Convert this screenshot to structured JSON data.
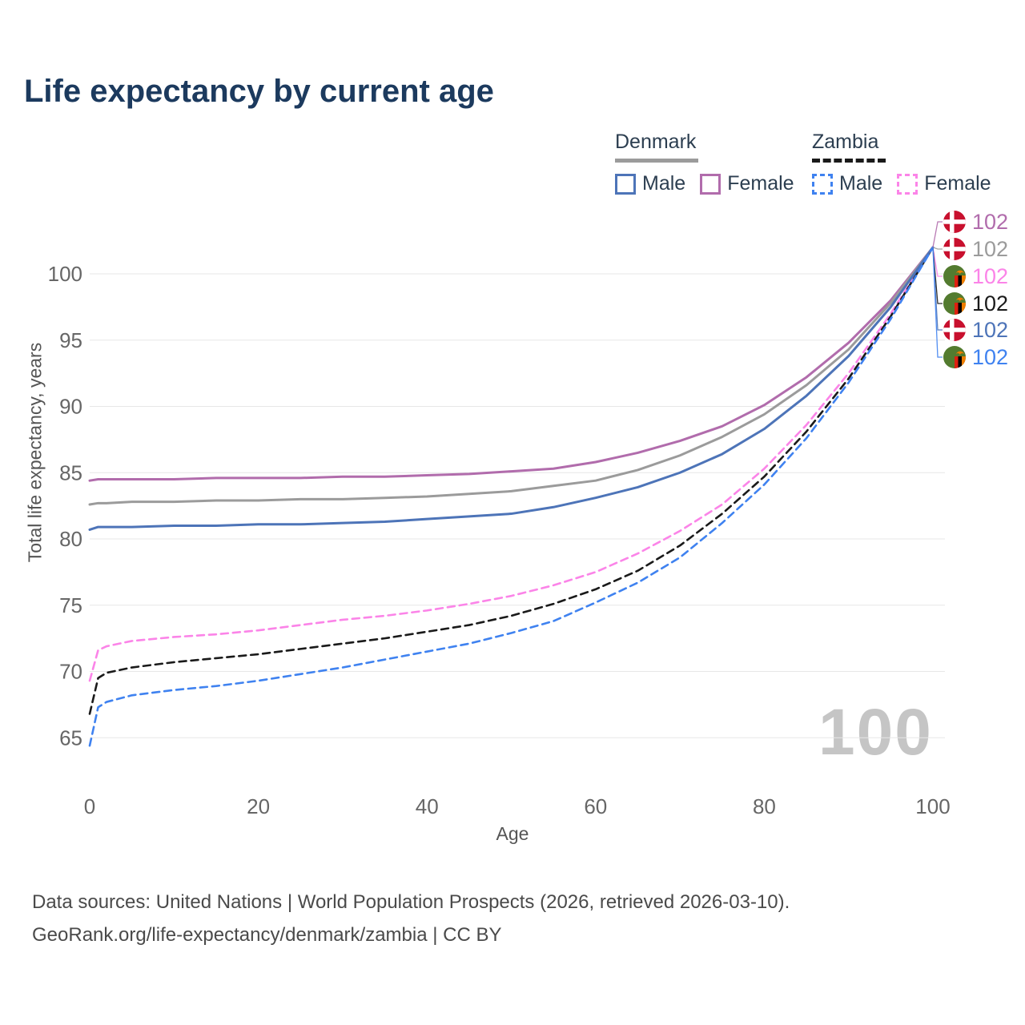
{
  "title": "Life expectancy by current age",
  "legend": {
    "groups": [
      {
        "country": "Denmark",
        "line_style": "solid",
        "rule_color": "#9b9b9b",
        "items": [
          {
            "label": "Male",
            "color": "#4d74b8"
          },
          {
            "label": "Female",
            "color": "#b16cac"
          }
        ]
      },
      {
        "country": "Zambia",
        "line_style": "dashed",
        "rule_color": "#1a1a1a",
        "items": [
          {
            "label": "Male",
            "color": "#3f82f0"
          },
          {
            "label": "Female",
            "color": "#fb84e8"
          }
        ]
      }
    ]
  },
  "chart_data": {
    "type": "line",
    "title": "Life expectancy by current age",
    "xlabel": "Age",
    "ylabel": "Total life expectancy, years",
    "xlim": [
      0,
      100
    ],
    "ylim": [
      63,
      103
    ],
    "xticks": [
      0,
      20,
      40,
      60,
      80,
      100
    ],
    "yticks": [
      65,
      70,
      75,
      80,
      85,
      90,
      95,
      100
    ],
    "grid": true,
    "legend_position": "top-right",
    "watermark": "100",
    "x": [
      0,
      1,
      2,
      5,
      10,
      15,
      20,
      25,
      30,
      35,
      40,
      45,
      50,
      55,
      60,
      65,
      70,
      75,
      80,
      85,
      90,
      95,
      100
    ],
    "series": [
      {
        "name": "Denmark Female",
        "country": "Denmark",
        "sex": "Female",
        "color": "#b16cac",
        "dashed": false,
        "flag_icon": "denmark-flag-icon",
        "end_label": "102",
        "values": [
          84.4,
          84.5,
          84.5,
          84.5,
          84.5,
          84.6,
          84.6,
          84.6,
          84.7,
          84.7,
          84.8,
          84.9,
          85.1,
          85.3,
          85.8,
          86.5,
          87.4,
          88.5,
          90.1,
          92.2,
          94.8,
          98.0,
          102
        ]
      },
      {
        "name": "Denmark Both sexes",
        "country": "Denmark",
        "sex": "All",
        "color": "#9b9b9b",
        "dashed": false,
        "flag_icon": "denmark-flag-icon",
        "end_label": "102",
        "values": [
          82.6,
          82.7,
          82.7,
          82.8,
          82.8,
          82.9,
          82.9,
          83.0,
          83.0,
          83.1,
          83.2,
          83.4,
          83.6,
          84.0,
          84.4,
          85.2,
          86.3,
          87.7,
          89.4,
          91.6,
          94.3,
          97.8,
          102
        ]
      },
      {
        "name": "Zambia Female",
        "country": "Zambia",
        "sex": "Female",
        "color": "#fb84e8",
        "dashed": true,
        "flag_icon": "zambia-flag-icon",
        "end_label": "102",
        "values": [
          69.3,
          71.6,
          71.9,
          72.3,
          72.6,
          72.8,
          73.1,
          73.5,
          73.9,
          74.2,
          74.6,
          75.1,
          75.7,
          76.5,
          77.5,
          78.9,
          80.6,
          82.6,
          85.3,
          88.6,
          92.5,
          97.0,
          102
        ]
      },
      {
        "name": "Zambia Both sexes",
        "country": "Zambia",
        "sex": "All",
        "color": "#1a1a1a",
        "dashed": true,
        "flag_icon": "zambia-flag-icon",
        "end_label": "102",
        "values": [
          66.8,
          69.5,
          69.9,
          70.3,
          70.7,
          71.0,
          71.3,
          71.7,
          72.1,
          72.5,
          73.0,
          73.5,
          74.2,
          75.1,
          76.2,
          77.6,
          79.5,
          81.9,
          84.7,
          88.1,
          92.1,
          96.8,
          102
        ]
      },
      {
        "name": "Denmark Male",
        "country": "Denmark",
        "sex": "Male",
        "color": "#4d74b8",
        "dashed": false,
        "flag_icon": "denmark-flag-icon",
        "end_label": "102",
        "values": [
          80.7,
          80.9,
          80.9,
          80.9,
          81.0,
          81.0,
          81.1,
          81.1,
          81.2,
          81.3,
          81.5,
          81.7,
          81.9,
          82.4,
          83.1,
          83.9,
          85.0,
          86.4,
          88.3,
          90.8,
          93.8,
          97.5,
          102
        ]
      },
      {
        "name": "Zambia Male",
        "country": "Zambia",
        "sex": "Male",
        "color": "#3f82f0",
        "dashed": true,
        "flag_icon": "zambia-flag-icon",
        "end_label": "102",
        "values": [
          64.4,
          67.3,
          67.7,
          68.2,
          68.6,
          68.9,
          69.3,
          69.8,
          70.3,
          70.9,
          71.5,
          72.1,
          72.9,
          73.8,
          75.2,
          76.7,
          78.6,
          81.2,
          84.1,
          87.6,
          91.8,
          96.6,
          102
        ]
      }
    ]
  },
  "footer": {
    "line1": "Data sources: United Nations | World Population Prospects (2026, retrieved 2026-03-10).",
    "line2": "GeoRank.org/life-expectancy/denmark/zambia | CC BY"
  }
}
